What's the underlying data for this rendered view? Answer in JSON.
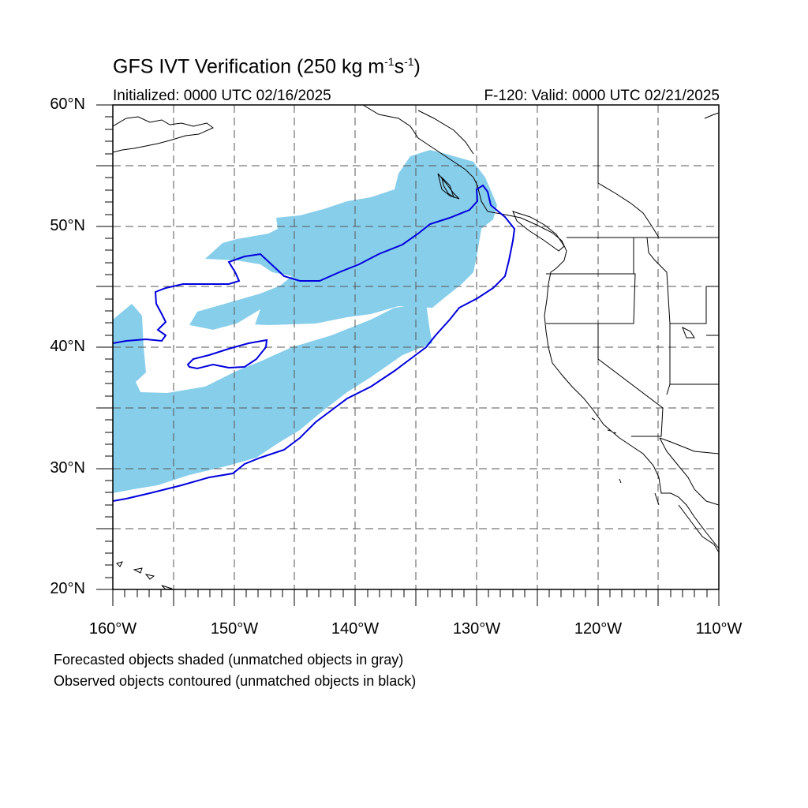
{
  "title_main": "GFS IVT Verification (250 kg m",
  "title_sup1": "-1",
  "title_mid": "s",
  "title_sup2": "-1",
  "title_end": ")",
  "initialized": "Initialized: 0000 UTC 02/16/2025",
  "valid": "F-120: Valid: 0000 UTC 02/21/2025",
  "lat_labels": [
    "60°N",
    "50°N",
    "40°N",
    "30°N",
    "20°N"
  ],
  "lon_labels": [
    "160°W",
    "150°W",
    "140°W",
    "130°W",
    "120°W",
    "110°W"
  ],
  "footnote1": "Forecasted objects shaded (unmatched objects in gray)",
  "footnote2": "Observed objects contoured (unmatched objects in black)",
  "colors": {
    "forecast_fill": "#87ceeb",
    "observed_contour": "#0000dd",
    "coastline": "#000000",
    "grid": "#555555"
  }
}
